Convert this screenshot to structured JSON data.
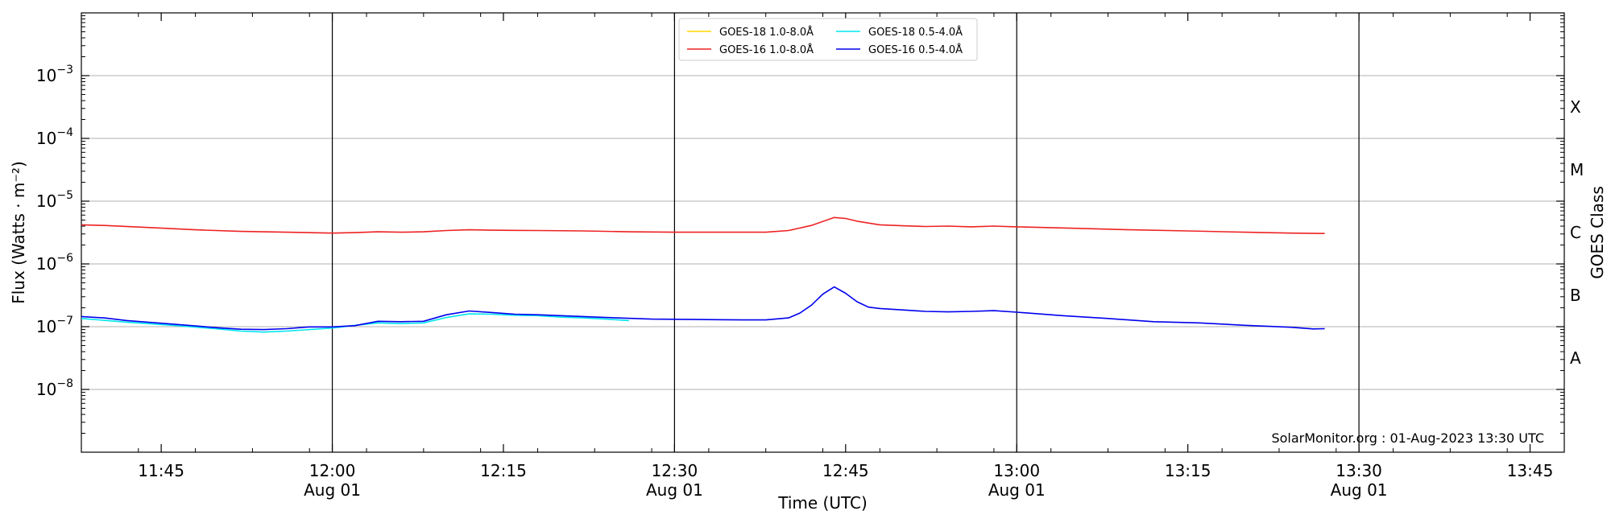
{
  "chart_data": {
    "type": "line",
    "title": "",
    "xlabel": "Time (UTC)",
    "ylabel": "Flux (Watts · m⁻²)",
    "y2label": "GOES Class",
    "yscale": "log",
    "ylim": [
      1e-09,
      0.01
    ],
    "xlim": [
      "11:38",
      "13:48"
    ],
    "grid": "horizontal",
    "legend": "top-center",
    "credit": "SolarMonitor.org : 01-Aug-2023 13:30 UTC",
    "x_ticks": [
      "11:45",
      "12:00",
      "12:15",
      "12:30",
      "12:45",
      "13:00",
      "13:15",
      "13:30",
      "13:45"
    ],
    "date_ticks": [
      {
        "x": "12:00",
        "label": "Aug 01"
      },
      {
        "x": "12:30",
        "label": "Aug 01"
      },
      {
        "x": "13:00",
        "label": "Aug 01"
      },
      {
        "x": "13:30",
        "label": "Aug 01"
      }
    ],
    "y_ticks": [
      {
        "value": 1e-08,
        "label": "10",
        "exp": "−8"
      },
      {
        "value": 1e-07,
        "label": "10",
        "exp": "−7"
      },
      {
        "value": 1e-06,
        "label": "10",
        "exp": "−6"
      },
      {
        "value": 1e-05,
        "label": "10",
        "exp": "−5"
      },
      {
        "value": 0.0001,
        "label": "10",
        "exp": "−4"
      },
      {
        "value": 0.001,
        "label": "10",
        "exp": "−3"
      }
    ],
    "goes_classes": [
      {
        "label": "A",
        "value": 3.16e-08
      },
      {
        "label": "B",
        "value": 3.16e-07
      },
      {
        "label": "C",
        "value": 3.16e-06
      },
      {
        "label": "M",
        "value": 3.16e-05
      },
      {
        "label": "X",
        "value": 0.000316
      }
    ],
    "series": [
      {
        "name": "GOES-18 1.0-8.0Å",
        "color": "#ffd700",
        "x": [],
        "values": []
      },
      {
        "name": "GOES-18 0.5-4.0Å",
        "color": "#00e5ee",
        "x": [
          "11:38",
          "11:42",
          "11:46",
          "11:50",
          "11:52",
          "11:54",
          "11:56",
          "11:58",
          "12:00",
          "12:02",
          "12:04",
          "12:06",
          "12:08",
          "12:10",
          "12:12",
          "12:14",
          "12:16",
          "12:18",
          "12:20",
          "12:22",
          "12:24",
          "12:26"
        ],
        "values": [
          1.35e-07,
          1.18e-07,
          1.05e-07,
          9.2e-08,
          8.5e-08,
          8.2e-08,
          8.5e-08,
          9e-08,
          9.5e-08,
          1.05e-07,
          1.15e-07,
          1.12e-07,
          1.15e-07,
          1.4e-07,
          1.6e-07,
          1.58e-07,
          1.52e-07,
          1.5e-07,
          1.42e-07,
          1.38e-07,
          1.32e-07,
          1.25e-07
        ]
      },
      {
        "name": "GOES-16 1.0-8.0Å",
        "color": "#ee2222",
        "x": [
          "11:38",
          "11:40",
          "11:44",
          "11:48",
          "11:52",
          "11:56",
          "12:00",
          "12:02",
          "12:04",
          "12:06",
          "12:08",
          "12:10",
          "12:12",
          "12:14",
          "12:18",
          "12:22",
          "12:26",
          "12:30",
          "12:34",
          "12:38",
          "12:40",
          "12:42",
          "12:44",
          "12:45",
          "12:46",
          "12:48",
          "12:50",
          "12:52",
          "12:54",
          "12:56",
          "12:58",
          "13:00",
          "13:05",
          "13:10",
          "13:15",
          "13:20",
          "13:24",
          "13:27"
        ],
        "values": [
          4.2e-06,
          4.1e-06,
          3.8e-06,
          3.5e-06,
          3.3e-06,
          3.2e-06,
          3.1e-06,
          3.15e-06,
          3.25e-06,
          3.2e-06,
          3.25e-06,
          3.4e-06,
          3.5e-06,
          3.45e-06,
          3.4e-06,
          3.35e-06,
          3.25e-06,
          3.2e-06,
          3.2e-06,
          3.2e-06,
          3.4e-06,
          4.1e-06,
          5.5e-06,
          5.3e-06,
          4.8e-06,
          4.2e-06,
          4.05e-06,
          3.95e-06,
          4e-06,
          3.9e-06,
          4e-06,
          3.9e-06,
          3.7e-06,
          3.5e-06,
          3.35e-06,
          3.2e-06,
          3.1e-06,
          3.05e-06
        ]
      },
      {
        "name": "GOES-16 0.5-4.0Å",
        "color": "#0000ee",
        "x": [
          "11:38",
          "11:40",
          "11:42",
          "11:46",
          "11:50",
          "11:52",
          "11:54",
          "11:56",
          "11:58",
          "12:00",
          "12:02",
          "12:04",
          "12:06",
          "12:08",
          "12:10",
          "12:12",
          "12:14",
          "12:16",
          "12:18",
          "12:20",
          "12:24",
          "12:28",
          "12:32",
          "12:36",
          "12:38",
          "12:40",
          "12:41",
          "12:42",
          "12:43",
          "12:44",
          "12:45",
          "12:46",
          "12:47",
          "12:48",
          "12:50",
          "12:52",
          "12:54",
          "12:56",
          "12:58",
          "13:00",
          "13:04",
          "13:08",
          "13:12",
          "13:16",
          "13:20",
          "13:24",
          "13:26",
          "13:27"
        ],
        "values": [
          1.45e-07,
          1.38e-07,
          1.25e-07,
          1.1e-07,
          9.6e-08,
          9.1e-08,
          9e-08,
          9.3e-08,
          9.9e-08,
          9.9e-08,
          1.04e-07,
          1.22e-07,
          1.2e-07,
          1.22e-07,
          1.55e-07,
          1.78e-07,
          1.68e-07,
          1.58e-07,
          1.55e-07,
          1.5e-07,
          1.4e-07,
          1.32e-07,
          1.3e-07,
          1.28e-07,
          1.28e-07,
          1.38e-07,
          1.65e-07,
          2.2e-07,
          3.3e-07,
          4.3e-07,
          3.4e-07,
          2.5e-07,
          2.05e-07,
          1.95e-07,
          1.85e-07,
          1.75e-07,
          1.72e-07,
          1.75e-07,
          1.8e-07,
          1.7e-07,
          1.5e-07,
          1.35e-07,
          1.2e-07,
          1.15e-07,
          1.05e-07,
          9.8e-08,
          9.2e-08,
          9.3e-08
        ]
      }
    ],
    "legend_order": [
      0,
      1,
      2,
      3
    ]
  }
}
